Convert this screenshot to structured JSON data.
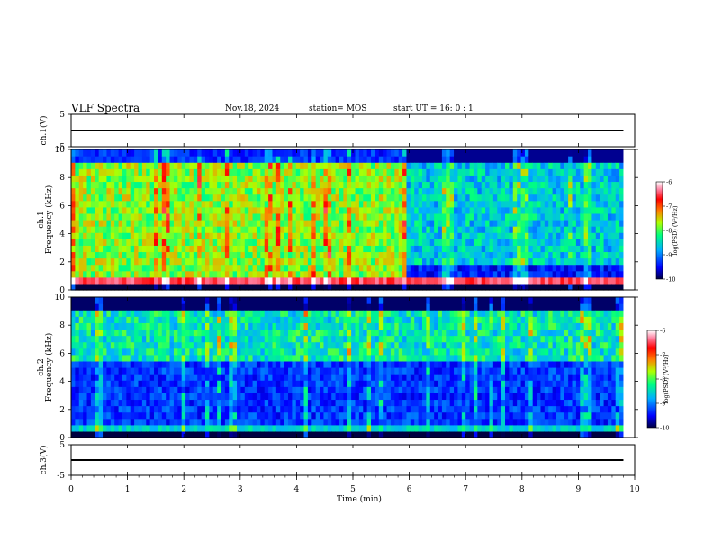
{
  "chart_data": {
    "type": "heatmap",
    "header": {
      "title": "VLF Spectra",
      "date": "Nov.18, 2024",
      "station": "station= MOS",
      "start": "start  UT  =   16: 0  : 1"
    },
    "x_axis": {
      "label": "Time  (min)",
      "range": [
        0,
        10
      ],
      "ticks": [
        "0",
        "1",
        "2",
        "3",
        "4",
        "5",
        "6",
        "7",
        "8",
        "9",
        "10"
      ]
    },
    "panels": [
      {
        "kind": "waveform",
        "ylabel": "ch.1(V)",
        "ylim": [
          -5,
          5
        ],
        "ticks": [
          "5",
          "-5"
        ],
        "signal_level": 0
      },
      {
        "kind": "spectrogram",
        "ylabel": "ch.1\nFrequency (kHz)",
        "ylim": [
          0,
          10
        ],
        "ticks": [
          "0",
          "2",
          "4",
          "6",
          "8",
          "10"
        ],
        "time_coverage_min": [
          0,
          9.8
        ],
        "features": [
          {
            "desc": "broadband",
            "time_min": [
              0,
              5.9
            ],
            "freq_khz": [
              0.5,
              9.2
            ],
            "log_psd": -7.5
          },
          {
            "desc": "weaker",
            "time_min": [
              5.9,
              9.8
            ],
            "freq_khz": [
              2,
              9.2
            ],
            "log_psd": -8.5
          },
          {
            "desc": "low-band",
            "time_min": [
              5.9,
              9.8
            ],
            "freq_khz": [
              0.5,
              2
            ],
            "log_psd": -9.4
          },
          {
            "desc": "line",
            "freq_khz": 0.6,
            "log_psd": -6.5
          }
        ],
        "colorbar": {
          "label": "log(PSD) (V²/Hz)",
          "range": [
            -10,
            -6
          ],
          "ticks": [
            "-6",
            "-7",
            "-8",
            "-9",
            "-10"
          ]
        }
      },
      {
        "kind": "spectrogram",
        "ylabel": "ch.2\nFrequency (kHz)",
        "ylim": [
          0,
          10
        ],
        "ticks": [
          "0",
          "2",
          "4",
          "6",
          "8",
          "10"
        ],
        "time_coverage_min": [
          0,
          9.8
        ],
        "features": [
          {
            "desc": "band",
            "time_min": [
              0,
              9.8
            ],
            "freq_khz": [
              5.5,
              9
            ],
            "log_psd": -8.2
          },
          {
            "desc": "background",
            "time_min": [
              0,
              9.8
            ],
            "freq_khz": [
              0,
              5.5
            ],
            "log_psd": -9.5
          }
        ],
        "colorbar": {
          "label": "log(PSD) (V²/Hz)",
          "range": [
            -10,
            -6
          ],
          "ticks": [
            "-6",
            "-7",
            "-8",
            "-9",
            "-10"
          ]
        }
      },
      {
        "kind": "waveform",
        "ylabel": "ch.3(V)",
        "ylim": [
          -5,
          5
        ],
        "ticks": [
          "5",
          "-5"
        ],
        "signal_level": 0
      }
    ]
  }
}
